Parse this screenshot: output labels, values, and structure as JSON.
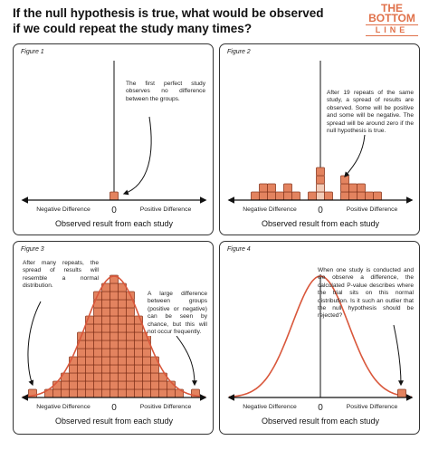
{
  "header": {
    "title_lines": [
      "If the null hypothesis is true, what would be observed",
      "if we could repeat the study many times?"
    ],
    "logo": [
      "THE",
      "BOTTOM",
      "LINE"
    ]
  },
  "panels": [
    {
      "figure": "Figure 1",
      "annotations": [
        "The first perfect study observes no difference between the groups."
      ],
      "axis": {
        "negative": "Negative Difference",
        "zero": "0",
        "positive": "Positive Difference",
        "label": "Observed result from each study"
      }
    },
    {
      "figure": "Figure 2",
      "annotations": [
        "After 19 repeats of the same study, a spread of results are observed. Some will be positive and some will be negative. The spread will be around zero if the null hypothesis is true."
      ],
      "axis": {
        "negative": "Negative Difference",
        "zero": "0",
        "positive": "Positive Difference",
        "label": "Observed result from each study"
      }
    },
    {
      "figure": "Figure 3",
      "annotations": [
        "After many repeats, the spread of results will resemble a normal distribution.",
        "A large difference between groups (positive or negative) can be seen by chance, but this will not occur frequently."
      ],
      "axis": {
        "negative": "Negative Difference",
        "zero": "0",
        "positive": "Positive Difference",
        "label": "Observed result from each study"
      }
    },
    {
      "figure": "Figure 4",
      "annotations": [
        "When one study is conducted and we observe a difference, the calculated P-value describes where the trial sits on this normal distribution. Is it such an outlier that the null hypothesis should be rejected?"
      ],
      "axis": {
        "negative": "Negative Difference",
        "zero": "0",
        "positive": "Positive Difference",
        "label": "Observed result from each study"
      }
    }
  ]
}
